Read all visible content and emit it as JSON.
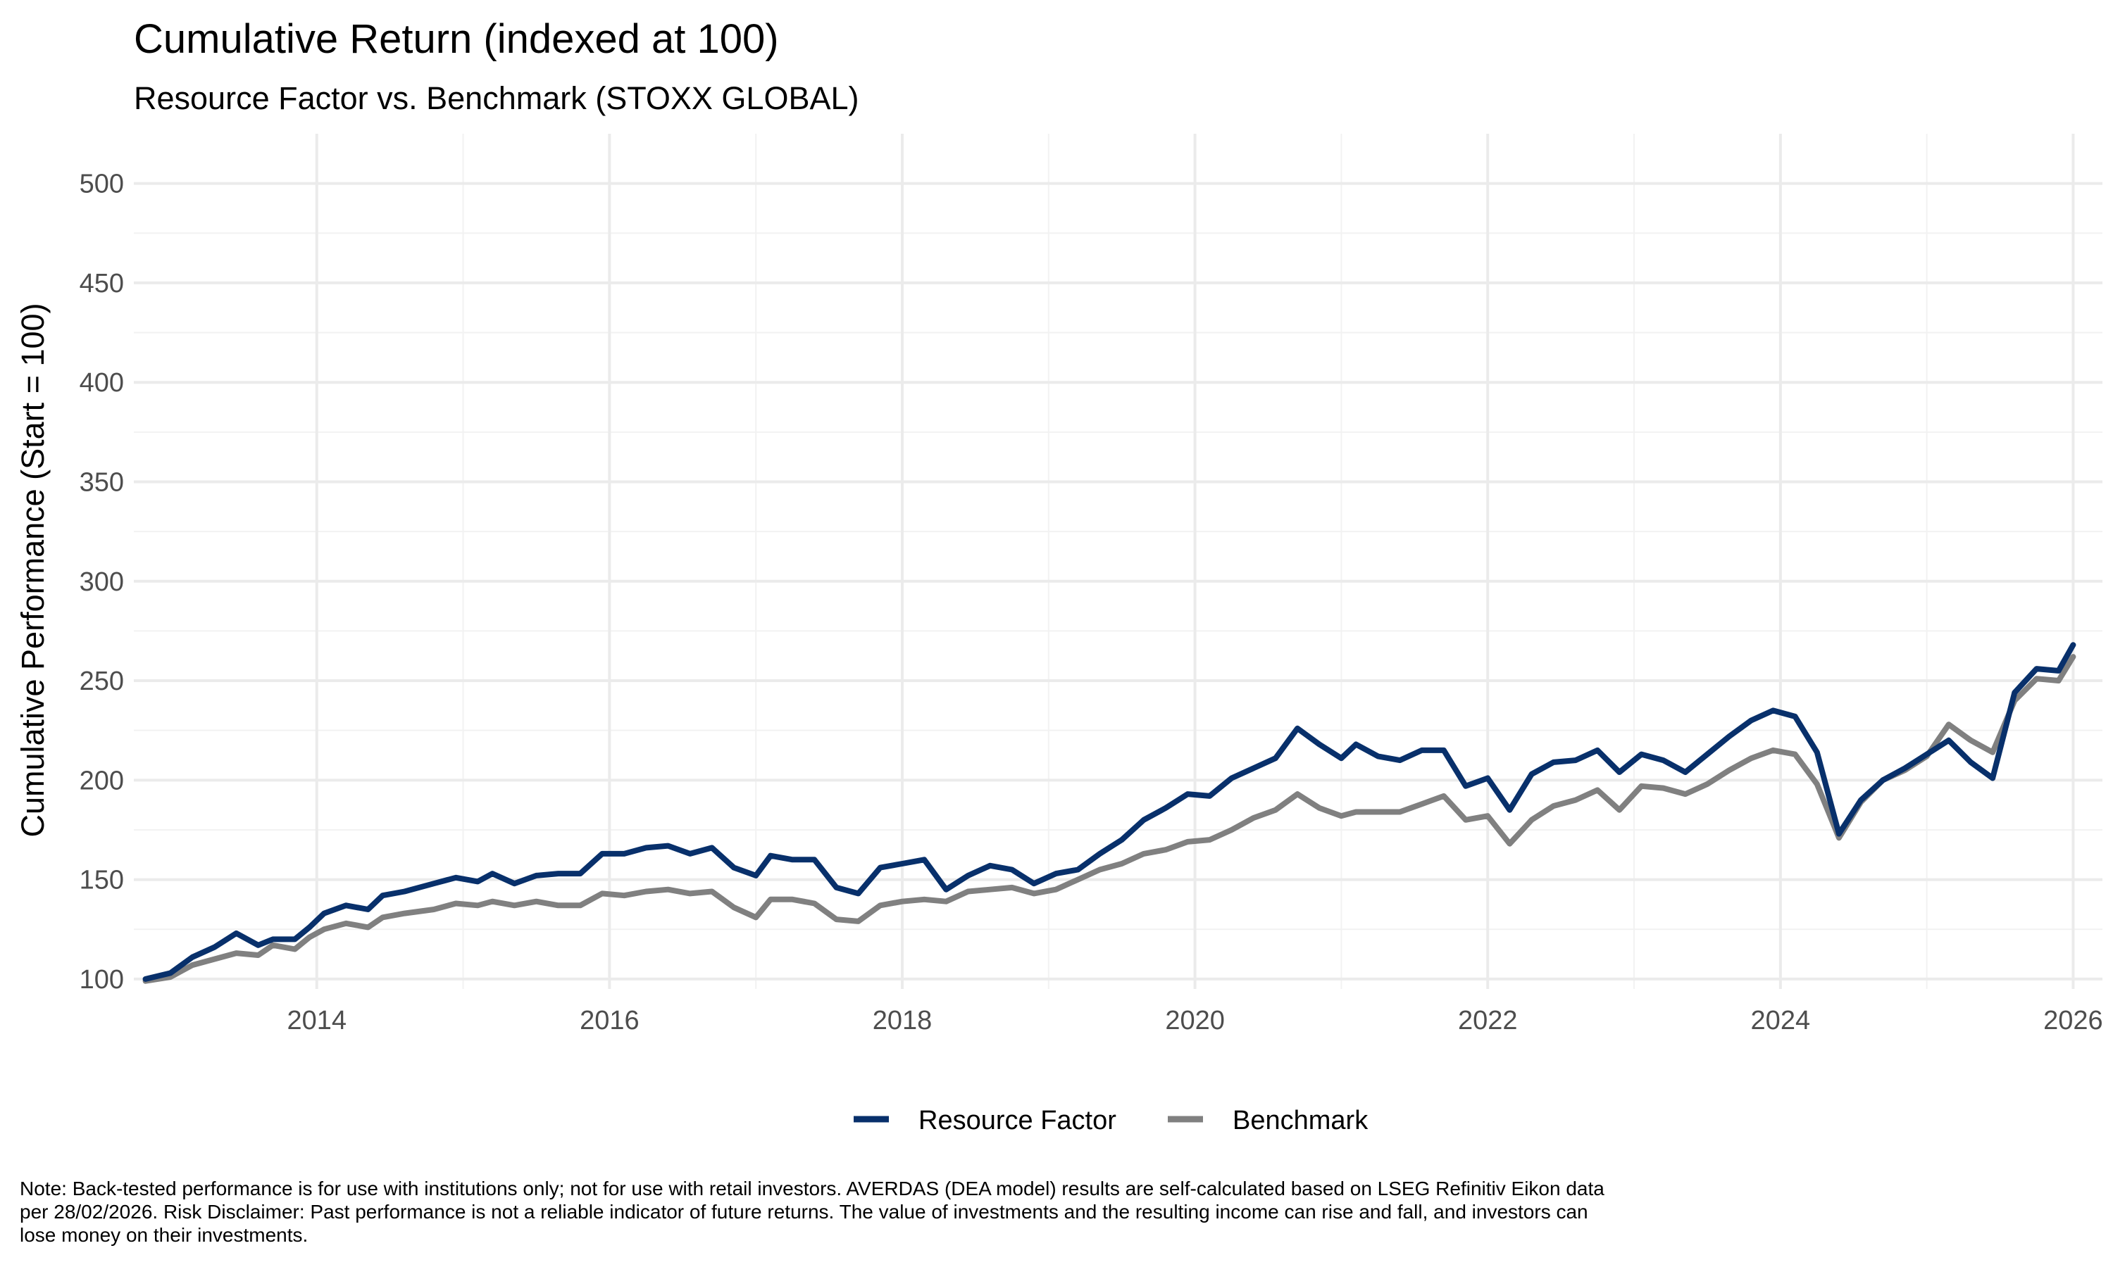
{
  "title": "Cumulative Return (indexed at 100)",
  "subtitle": "Resource Factor vs. Benchmark (STOXX GLOBAL)",
  "note": "Note: Back-tested performance is for use with institutions only; not for use with retail investors. AVERDAS (DEA model) results are self-calculated based on LSEG Refinitiv Eikon data per 28/02/2026. Risk Disclaimer: Past performance is not a reliable indicator of future returns. The value of investments and the resulting income can rise and fall, and investors can lose money on their investments.",
  "chart_data": {
    "type": "line",
    "title": "Cumulative Return (indexed at 100)",
    "subtitle": "Resource Factor vs. Benchmark (STOXX GLOBAL)",
    "xlabel": "",
    "ylabel": "Cumulative Performance (Start = 100)",
    "xlim": [
      2012.75,
      2026.2
    ],
    "ylim": [
      95,
      525
    ],
    "x_ticks": [
      2014,
      2016,
      2018,
      2020,
      2022,
      2024,
      2026
    ],
    "x_tick_labels": [
      "2014",
      "2016",
      "2018",
      "2020",
      "2022",
      "2024",
      "2026"
    ],
    "y_ticks": [
      100,
      150,
      200,
      250,
      300,
      350,
      400,
      450,
      500
    ],
    "y_tick_labels": [
      "100",
      "150",
      "200",
      "250",
      "300",
      "350",
      "400",
      "450",
      "500"
    ],
    "grid": true,
    "legend_position": "bottom",
    "series": [
      {
        "name": "Resource Factor",
        "color": "#08306b",
        "points": [
          [
            2012.83,
            100
          ],
          [
            2013.0,
            103
          ],
          [
            2013.15,
            111
          ],
          [
            2013.3,
            116
          ],
          [
            2013.45,
            123
          ],
          [
            2013.6,
            117
          ],
          [
            2013.7,
            120
          ],
          [
            2013.85,
            120
          ],
          [
            2013.95,
            126
          ],
          [
            2014.05,
            133
          ],
          [
            2014.2,
            137
          ],
          [
            2014.35,
            135
          ],
          [
            2014.45,
            142
          ],
          [
            2014.6,
            144
          ],
          [
            2014.8,
            148
          ],
          [
            2014.95,
            151
          ],
          [
            2015.1,
            149
          ],
          [
            2015.2,
            153
          ],
          [
            2015.35,
            148
          ],
          [
            2015.5,
            152
          ],
          [
            2015.65,
            153
          ],
          [
            2015.8,
            153
          ],
          [
            2015.95,
            163
          ],
          [
            2016.1,
            163
          ],
          [
            2016.25,
            166
          ],
          [
            2016.4,
            167
          ],
          [
            2016.55,
            163
          ],
          [
            2016.7,
            166
          ],
          [
            2016.85,
            156
          ],
          [
            2017.0,
            152
          ],
          [
            2017.1,
            162
          ],
          [
            2017.25,
            160
          ],
          [
            2017.4,
            160
          ],
          [
            2017.55,
            146
          ],
          [
            2017.7,
            143
          ],
          [
            2017.85,
            156
          ],
          [
            2018.0,
            158
          ],
          [
            2018.15,
            160
          ],
          [
            2018.3,
            145
          ],
          [
            2018.45,
            152
          ],
          [
            2018.6,
            157
          ],
          [
            2018.75,
            155
          ],
          [
            2018.9,
            148
          ],
          [
            2019.05,
            153
          ],
          [
            2019.2,
            155
          ],
          [
            2019.35,
            163
          ],
          [
            2019.5,
            170
          ],
          [
            2019.65,
            180
          ],
          [
            2019.8,
            186
          ],
          [
            2019.95,
            193
          ],
          [
            2020.1,
            192
          ],
          [
            2020.25,
            201
          ],
          [
            2020.4,
            206
          ],
          [
            2020.55,
            211
          ],
          [
            2020.7,
            226
          ],
          [
            2020.85,
            218
          ],
          [
            2021.0,
            211
          ],
          [
            2021.1,
            218
          ],
          [
            2021.25,
            212
          ],
          [
            2021.4,
            210
          ],
          [
            2021.55,
            215
          ],
          [
            2021.7,
            215
          ],
          [
            2021.85,
            197
          ],
          [
            2022.0,
            201
          ],
          [
            2022.15,
            185
          ],
          [
            2022.3,
            203
          ],
          [
            2022.45,
            209
          ],
          [
            2022.6,
            210
          ],
          [
            2022.75,
            215
          ],
          [
            2022.9,
            204
          ],
          [
            2023.05,
            213
          ],
          [
            2023.2,
            210
          ],
          [
            2023.35,
            204
          ],
          [
            2023.5,
            213
          ],
          [
            2023.65,
            222
          ],
          [
            2023.8,
            230
          ],
          [
            2023.95,
            235
          ],
          [
            2024.1,
            232
          ],
          [
            2024.25,
            214
          ],
          [
            2024.4,
            173
          ],
          [
            2024.55,
            190
          ],
          [
            2024.7,
            200
          ],
          [
            2024.85,
            206
          ],
          [
            2025.0,
            213
          ],
          [
            2025.15,
            220
          ],
          [
            2025.3,
            209
          ],
          [
            2025.45,
            201
          ],
          [
            2025.6,
            244
          ],
          [
            2025.75,
            256
          ],
          [
            2025.9,
            255
          ],
          [
            2026.0,
            268
          ]
        ]
      },
      {
        "name": "Benchmark",
        "color": "#808080",
        "points": [
          [
            2012.83,
            99
          ],
          [
            2013.0,
            101
          ],
          [
            2013.15,
            107
          ],
          [
            2013.3,
            110
          ],
          [
            2013.45,
            113
          ],
          [
            2013.6,
            112
          ],
          [
            2013.7,
            117
          ],
          [
            2013.85,
            115
          ],
          [
            2013.95,
            121
          ],
          [
            2014.05,
            125
          ],
          [
            2014.2,
            128
          ],
          [
            2014.35,
            126
          ],
          [
            2014.45,
            131
          ],
          [
            2014.6,
            133
          ],
          [
            2014.8,
            135
          ],
          [
            2014.95,
            138
          ],
          [
            2015.1,
            137
          ],
          [
            2015.2,
            139
          ],
          [
            2015.35,
            137
          ],
          [
            2015.5,
            139
          ],
          [
            2015.65,
            137
          ],
          [
            2015.8,
            137
          ],
          [
            2015.95,
            143
          ],
          [
            2016.1,
            142
          ],
          [
            2016.25,
            144
          ],
          [
            2016.4,
            145
          ],
          [
            2016.55,
            143
          ],
          [
            2016.7,
            144
          ],
          [
            2016.85,
            136
          ],
          [
            2017.0,
            131
          ],
          [
            2017.1,
            140
          ],
          [
            2017.25,
            140
          ],
          [
            2017.4,
            138
          ],
          [
            2017.55,
            130
          ],
          [
            2017.7,
            129
          ],
          [
            2017.85,
            137
          ],
          [
            2018.0,
            139
          ],
          [
            2018.15,
            140
          ],
          [
            2018.3,
            139
          ],
          [
            2018.45,
            144
          ],
          [
            2018.6,
            145
          ],
          [
            2018.75,
            146
          ],
          [
            2018.9,
            143
          ],
          [
            2019.05,
            145
          ],
          [
            2019.2,
            150
          ],
          [
            2019.35,
            155
          ],
          [
            2019.5,
            158
          ],
          [
            2019.65,
            163
          ],
          [
            2019.8,
            165
          ],
          [
            2019.95,
            169
          ],
          [
            2020.1,
            170
          ],
          [
            2020.25,
            175
          ],
          [
            2020.4,
            181
          ],
          [
            2020.55,
            185
          ],
          [
            2020.7,
            193
          ],
          [
            2020.85,
            186
          ],
          [
            2021.0,
            182
          ],
          [
            2021.1,
            184
          ],
          [
            2021.25,
            184
          ],
          [
            2021.4,
            184
          ],
          [
            2021.55,
            188
          ],
          [
            2021.7,
            192
          ],
          [
            2021.85,
            180
          ],
          [
            2022.0,
            182
          ],
          [
            2022.15,
            168
          ],
          [
            2022.3,
            180
          ],
          [
            2022.45,
            187
          ],
          [
            2022.6,
            190
          ],
          [
            2022.75,
            195
          ],
          [
            2022.9,
            185
          ],
          [
            2023.05,
            197
          ],
          [
            2023.2,
            196
          ],
          [
            2023.35,
            193
          ],
          [
            2023.5,
            198
          ],
          [
            2023.65,
            205
          ],
          [
            2023.8,
            211
          ],
          [
            2023.95,
            215
          ],
          [
            2024.1,
            213
          ],
          [
            2024.25,
            198
          ],
          [
            2024.4,
            171
          ],
          [
            2024.55,
            189
          ],
          [
            2024.7,
            200
          ],
          [
            2024.85,
            205
          ],
          [
            2025.0,
            212
          ],
          [
            2025.15,
            228
          ],
          [
            2025.3,
            220
          ],
          [
            2025.45,
            214
          ],
          [
            2025.6,
            240
          ],
          [
            2025.75,
            251
          ],
          [
            2025.9,
            250
          ],
          [
            2026.0,
            262
          ]
        ]
      }
    ]
  }
}
